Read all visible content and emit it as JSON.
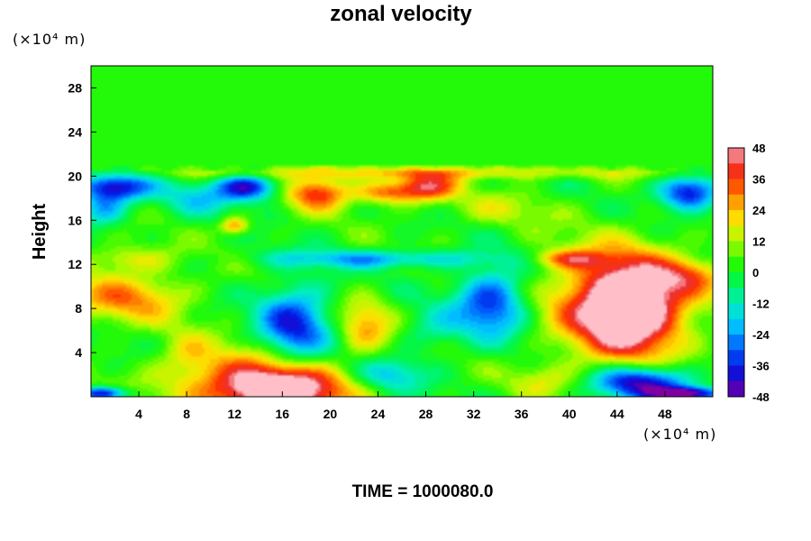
{
  "chart_data": {
    "type": "heatmap",
    "title": "zonal velocity",
    "xlabel": "",
    "ylabel": "Height",
    "x_unit": "(×10⁴ m)",
    "y_unit": "(×10⁴ m)",
    "footer": "TIME = 1000080.0",
    "xlim": [
      0,
      52
    ],
    "ylim": [
      0,
      30
    ],
    "x_ticks": [
      4,
      8,
      12,
      16,
      20,
      24,
      28,
      32,
      36,
      40,
      44,
      48
    ],
    "y_ticks": [
      4,
      8,
      12,
      16,
      20,
      24,
      28
    ],
    "colorbar": {
      "min": -48,
      "max": 48,
      "step": 6,
      "tick_labels": [
        48,
        36,
        24,
        12,
        0,
        -12,
        -24,
        -36,
        -48
      ]
    },
    "background_value": 2,
    "features": [
      {
        "x": 16,
        "y": 0.5,
        "value": 48,
        "rx": 5,
        "ry": 2
      },
      {
        "x": 13,
        "y": 1.5,
        "value": 30,
        "rx": 7,
        "ry": 3
      },
      {
        "x": 17,
        "y": 6.5,
        "value": -36,
        "rx": 3,
        "ry": 3.5
      },
      {
        "x": 33.5,
        "y": 8.5,
        "value": -36,
        "rx": 3,
        "ry": 3
      },
      {
        "x": 45,
        "y": 8,
        "value": 48,
        "rx": 4,
        "ry": 4
      },
      {
        "x": 44,
        "y": 8.5,
        "value": 34,
        "rx": 6,
        "ry": 5
      },
      {
        "x": 23,
        "y": 6.5,
        "value": 24,
        "rx": 2.2,
        "ry": 2.5
      },
      {
        "x": 3,
        "y": 9,
        "value": 28,
        "rx": 5,
        "ry": 2.2
      },
      {
        "x": 19,
        "y": 18.5,
        "value": 38,
        "rx": 2.5,
        "ry": 1.5
      },
      {
        "x": 28,
        "y": 19,
        "value": 40,
        "rx": 2.5,
        "ry": 1.2
      },
      {
        "x": 24.5,
        "y": 18.5,
        "value": 30,
        "rx": 2.5,
        "ry": 1
      },
      {
        "x": 13,
        "y": 19,
        "value": -42,
        "rx": 2.5,
        "ry": 1.2
      },
      {
        "x": 2,
        "y": 19,
        "value": -40,
        "rx": 3,
        "ry": 1.2
      },
      {
        "x": 50,
        "y": 18.5,
        "value": -42,
        "rx": 2.5,
        "ry": 1.5
      },
      {
        "x": 46,
        "y": 1.3,
        "value": -46,
        "rx": 4,
        "ry": 1.5
      },
      {
        "x": 1,
        "y": 0.3,
        "value": -44,
        "rx": 2,
        "ry": 0.6
      },
      {
        "x": 50,
        "y": 0.3,
        "value": -46,
        "rx": 3,
        "ry": 0.6
      },
      {
        "x": 12,
        "y": 15.5,
        "value": 30,
        "rx": 1.2,
        "ry": 0.8
      },
      {
        "x": 40,
        "y": 12.5,
        "value": 28,
        "rx": 3,
        "ry": 0.8
      },
      {
        "x": 24,
        "y": 12.5,
        "value": -22,
        "rx": 9,
        "ry": 0.8
      },
      {
        "x": 1,
        "y": 17,
        "value": -22,
        "rx": 2,
        "ry": 1.5
      },
      {
        "x": 9,
        "y": 18,
        "value": -14,
        "rx": 3,
        "ry": 1.5
      },
      {
        "x": 34,
        "y": 17,
        "value": 12,
        "rx": 5,
        "ry": 1.5
      },
      {
        "x": 3,
        "y": 12.5,
        "value": 18,
        "rx": 4,
        "ry": 1.2
      },
      {
        "x": 8,
        "y": 4,
        "value": 12,
        "rx": 2,
        "ry": 2
      },
      {
        "x": 25,
        "y": 2,
        "value": -18,
        "rx": 3,
        "ry": 1.5
      },
      {
        "x": 38,
        "y": 1.5,
        "value": 14,
        "rx": 3,
        "ry": 1.5
      },
      {
        "x": 50,
        "y": 11,
        "value": 22,
        "rx": 3,
        "ry": 1.5
      },
      {
        "x": 28.5,
        "y": 6,
        "value": -10,
        "rx": 2.5,
        "ry": 2
      },
      {
        "x": 27,
        "y": 20.3,
        "value": 20,
        "rx": 22,
        "ry": 0.6
      }
    ]
  }
}
